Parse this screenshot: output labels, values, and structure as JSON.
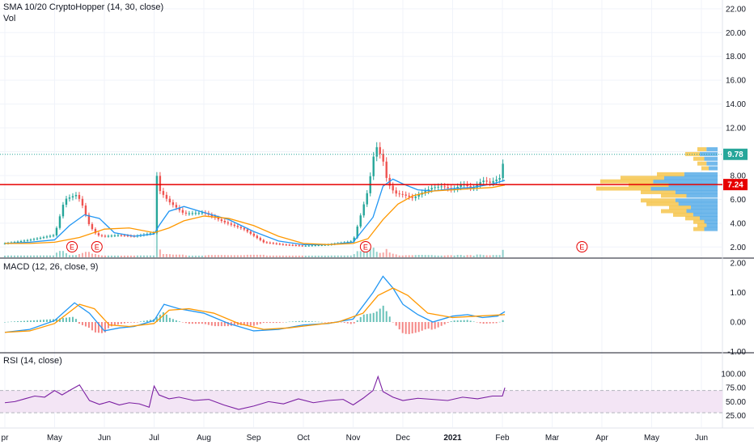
{
  "legends": {
    "main": "SMA 10/20 CryptoHopper (14, 30, close)",
    "volume": "Vol",
    "macd": "MACD (12, 26, close, 9)",
    "rsi": "RSI (14, close)"
  },
  "markers": {
    "price_last": "9.78",
    "resistance": "7.24",
    "earnings": "E"
  },
  "colors": {
    "up": "#26a69a",
    "down": "#ef5350",
    "sma_fast": "#2196f3",
    "sma_slow": "#ff9800",
    "resistance": "#e60000",
    "last_price": "#26a69a",
    "rsi": "#7b1fa2",
    "rsi_band": "#f3e5f5",
    "vp_up": "#4fa8e6",
    "vp_down": "#f5c242"
  },
  "chart_data": [
    {
      "type": "candlestick",
      "title": "SMA 10/20 CryptoHopper (14, 30, close)",
      "x_ticks": [
        "pr",
        "May",
        "Jun",
        "Jul",
        "Aug",
        "Sep",
        "Oct",
        "Nov",
        "Dec",
        "2021",
        "Feb",
        "Mar",
        "Apr",
        "May",
        "Jun"
      ],
      "y_ticks": [
        "2.00",
        "4.00",
        "6.00",
        "8.00",
        "10.00",
        "12.00",
        "14.00",
        "16.00",
        "18.00",
        "20.00",
        "22.00"
      ],
      "ylim": [
        2.0,
        22.5
      ],
      "last_price": 9.78,
      "resistance_level": 7.24,
      "earnings_markers": [
        "May",
        "Jun",
        "Nov",
        "Apr"
      ],
      "series": [
        {
          "name": "price",
          "x_month": [
            0,
            0.5,
            1,
            1.2,
            1.45,
            1.55,
            1.7,
            1.85,
            2,
            2.3,
            2.6,
            3.0,
            3.05,
            3.1,
            3.3,
            3.6,
            4,
            4.4,
            4.8,
            5.2,
            5.6,
            6,
            6.5,
            7,
            7.3,
            7.45,
            7.6,
            7.65,
            7.75,
            7.85,
            8,
            8.2,
            8.4,
            8.6,
            8.8,
            9,
            9.2,
            9.4,
            9.6,
            9.75,
            9.95,
            10.05
          ],
          "values": [
            2.3,
            2.6,
            3.0,
            6.0,
            6.4,
            5.6,
            3.8,
            3.0,
            2.9,
            3.0,
            2.9,
            3.2,
            8.1,
            6.8,
            5.8,
            4.8,
            4.9,
            4.1,
            3.5,
            2.4,
            2.2,
            2.1,
            2.2,
            2.5,
            6.8,
            10.6,
            9.3,
            8.0,
            7.0,
            6.5,
            6.4,
            6.1,
            6.6,
            7.0,
            7.1,
            6.8,
            7.3,
            6.9,
            7.6,
            7.4,
            7.8,
            9.78
          ]
        },
        {
          "name": "SMA 10",
          "x_month": [
            0,
            0.5,
            1,
            1.3,
            1.6,
            1.9,
            2.2,
            2.6,
            3.0,
            3.1,
            3.3,
            3.6,
            4.0,
            4.5,
            5.0,
            5.5,
            6,
            6.5,
            7,
            7.4,
            7.6,
            7.8,
            8.0,
            8.3,
            8.6,
            9.0,
            9.4,
            9.8,
            10.05
          ],
          "values": [
            2.3,
            2.4,
            2.6,
            3.8,
            4.7,
            4.4,
            3.2,
            2.9,
            3.1,
            3.8,
            5.0,
            5.4,
            4.9,
            4.3,
            3.3,
            2.5,
            2.2,
            2.2,
            2.4,
            4.5,
            7.1,
            7.7,
            7.3,
            6.8,
            6.7,
            6.9,
            7.0,
            7.3,
            7.6
          ]
        },
        {
          "name": "SMA 20",
          "x_month": [
            0,
            0.5,
            1,
            1.5,
            2.0,
            2.5,
            3.0,
            3.3,
            3.6,
            4.0,
            4.5,
            5.0,
            5.5,
            6,
            6.5,
            7,
            7.3,
            7.6,
            7.9,
            8.2,
            8.6,
            9.0,
            9.4,
            9.8,
            10.05
          ],
          "values": [
            2.3,
            2.3,
            2.4,
            2.8,
            3.5,
            3.6,
            3.2,
            3.6,
            4.2,
            4.6,
            4.4,
            3.8,
            2.9,
            2.3,
            2.2,
            2.3,
            2.7,
            4.3,
            5.6,
            6.3,
            6.7,
            6.8,
            6.9,
            7.0,
            7.2
          ]
        }
      ]
    },
    {
      "type": "line",
      "title": "MACD (12, 26, close, 9)",
      "y_ticks": [
        "-1.00",
        "0.00",
        "1.00",
        "2.00"
      ],
      "ylim": [
        -1.0,
        2.0
      ],
      "series": [
        {
          "name": "MACD",
          "x_month": [
            0,
            0.5,
            1,
            1.4,
            1.7,
            2.0,
            2.3,
            2.6,
            3.0,
            3.2,
            3.5,
            4.0,
            4.5,
            5.0,
            5.5,
            6,
            6.5,
            7,
            7.4,
            7.6,
            7.8,
            8.0,
            8.3,
            8.6,
            9.0,
            9.3,
            9.6,
            9.9,
            10.05
          ],
          "values": [
            -0.35,
            -0.25,
            0.05,
            0.65,
            0.3,
            -0.3,
            -0.2,
            -0.15,
            0.05,
            0.6,
            0.45,
            0.3,
            -0.05,
            -0.3,
            -0.25,
            -0.1,
            -0.05,
            0.1,
            1.0,
            1.55,
            1.15,
            0.6,
            0.25,
            0.0,
            0.2,
            0.25,
            0.15,
            0.2,
            0.35
          ]
        },
        {
          "name": "Signal",
          "x_month": [
            0,
            0.5,
            1,
            1.5,
            1.8,
            2.1,
            2.5,
            3.0,
            3.3,
            3.7,
            4.2,
            4.7,
            5.2,
            5.7,
            6.2,
            6.7,
            7.2,
            7.5,
            7.8,
            8.1,
            8.5,
            9.0,
            9.5,
            10.05
          ],
          "values": [
            -0.35,
            -0.3,
            -0.05,
            0.6,
            0.45,
            -0.1,
            -0.15,
            -0.05,
            0.4,
            0.45,
            0.3,
            -0.05,
            -0.25,
            -0.2,
            -0.1,
            0.0,
            0.3,
            0.9,
            1.15,
            0.9,
            0.3,
            0.15,
            0.2,
            0.25
          ]
        }
      ]
    },
    {
      "type": "line",
      "title": "RSI (14, close)",
      "y_ticks": [
        "25.00",
        "50.00",
        "75.00",
        "100.00"
      ],
      "ylim": [
        15,
        105
      ],
      "band": [
        30,
        70
      ],
      "series": [
        {
          "name": "RSI",
          "x_month": [
            0,
            0.2,
            0.4,
            0.6,
            0.8,
            1.0,
            1.15,
            1.3,
            1.5,
            1.7,
            1.9,
            2.1,
            2.3,
            2.5,
            2.7,
            2.9,
            3.0,
            3.1,
            3.3,
            3.5,
            3.8,
            4.1,
            4.4,
            4.7,
            5.0,
            5.3,
            5.6,
            5.9,
            6.2,
            6.5,
            6.8,
            7.0,
            7.2,
            7.4,
            7.5,
            7.6,
            7.8,
            8.0,
            8.3,
            8.6,
            8.9,
            9.2,
            9.5,
            9.8,
            10.0,
            10.05
          ],
          "values": [
            48,
            50,
            55,
            60,
            58,
            70,
            62,
            70,
            80,
            52,
            45,
            50,
            44,
            48,
            46,
            40,
            78,
            62,
            55,
            58,
            52,
            54,
            44,
            36,
            42,
            50,
            46,
            55,
            48,
            52,
            54,
            44,
            56,
            70,
            95,
            68,
            58,
            52,
            56,
            54,
            52,
            58,
            55,
            60,
            60,
            75
          ]
        }
      ]
    }
  ]
}
